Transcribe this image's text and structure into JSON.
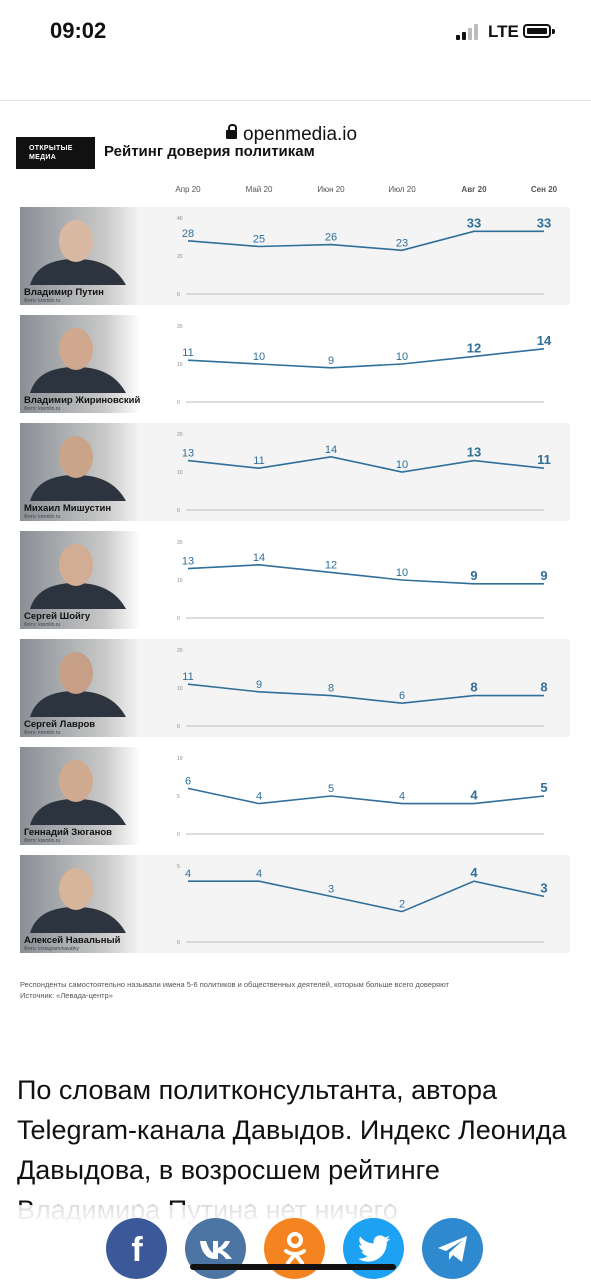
{
  "status_bar": {
    "time": "09:02",
    "network": "LTE"
  },
  "browser": {
    "url": "openmedia.io"
  },
  "figure": {
    "logo_line1": "ОТКРЫТЫЕ",
    "logo_line2": "МЕДИА",
    "title": "Рейтинг доверия политикам",
    "note": "Респонденты самостоятельно называли имена 5-6 политиков и общественных деятелей, которым больше всего доверяют",
    "source": "Источник: «Левада-центр»"
  },
  "chart_data": {
    "type": "line",
    "categories": [
      "Апр 20",
      "Май 20",
      "Июн 20",
      "Июл 20",
      "Авг 20",
      "Сен 20"
    ],
    "bold_categories": [
      "Авг 20",
      "Сен 20"
    ],
    "photo_credit_label": "Фото:",
    "line_color": "#2f6f99",
    "series": [
      {
        "name": "Владимир Путин",
        "photo_credit": "kremlin.ru",
        "values": [
          28,
          25,
          26,
          23,
          33,
          33
        ],
        "yticks": [
          40,
          20,
          0
        ],
        "ylim": [
          0,
          40
        ]
      },
      {
        "name": "Владимир Жириновский",
        "photo_credit": "kremlin.ru",
        "values": [
          11,
          10,
          9,
          10,
          12,
          14
        ],
        "yticks": [
          20,
          10,
          0
        ],
        "ylim": [
          0,
          20
        ]
      },
      {
        "name": "Михаил Мишустин",
        "photo_credit": "kremlin.ru",
        "values": [
          13,
          11,
          14,
          10,
          13,
          11
        ],
        "yticks": [
          20,
          10,
          0
        ],
        "ylim": [
          0,
          20
        ]
      },
      {
        "name": "Сергей Шойгу",
        "photo_credit": "kremlin.ru",
        "values": [
          13,
          14,
          12,
          10,
          9,
          9
        ],
        "yticks": [
          20,
          10,
          0
        ],
        "ylim": [
          0,
          20
        ]
      },
      {
        "name": "Сергей Лавров",
        "photo_credit": "kremlin.ru",
        "values": [
          11,
          9,
          8,
          6,
          8,
          8
        ],
        "yticks": [
          20,
          10,
          0
        ],
        "ylim": [
          0,
          20
        ]
      },
      {
        "name": "Геннадий Зюганов",
        "photo_credit": "kremlin.ru",
        "values": [
          6,
          4,
          5,
          4,
          4,
          5
        ],
        "yticks": [
          10,
          5,
          0
        ],
        "ylim": [
          0,
          10
        ]
      },
      {
        "name": "Алексей Навальный",
        "photo_credit": "instagram/navalny",
        "values": [
          4,
          4,
          3,
          2,
          4,
          3
        ],
        "yticks": [
          5,
          0
        ],
        "ylim": [
          0,
          5
        ]
      }
    ]
  },
  "article": {
    "text": "По словам политконсультанта, автора Telegram-канала Давыдов. Индекс Леонида Давыдова, в возросшем рейтинге Владимира Путина нет ничего"
  },
  "share": [
    {
      "name": "facebook",
      "glyph": "f",
      "color": "#3b5998"
    },
    {
      "name": "vkontakte",
      "glyph": "vk",
      "color": "#4c75a3"
    },
    {
      "name": "odnoklassniki",
      "glyph": "ok",
      "color": "#f48420"
    },
    {
      "name": "twitter",
      "glyph": "bird",
      "color": "#1da1f2"
    },
    {
      "name": "telegram",
      "glyph": "plane",
      "color": "#2f89ce"
    }
  ]
}
